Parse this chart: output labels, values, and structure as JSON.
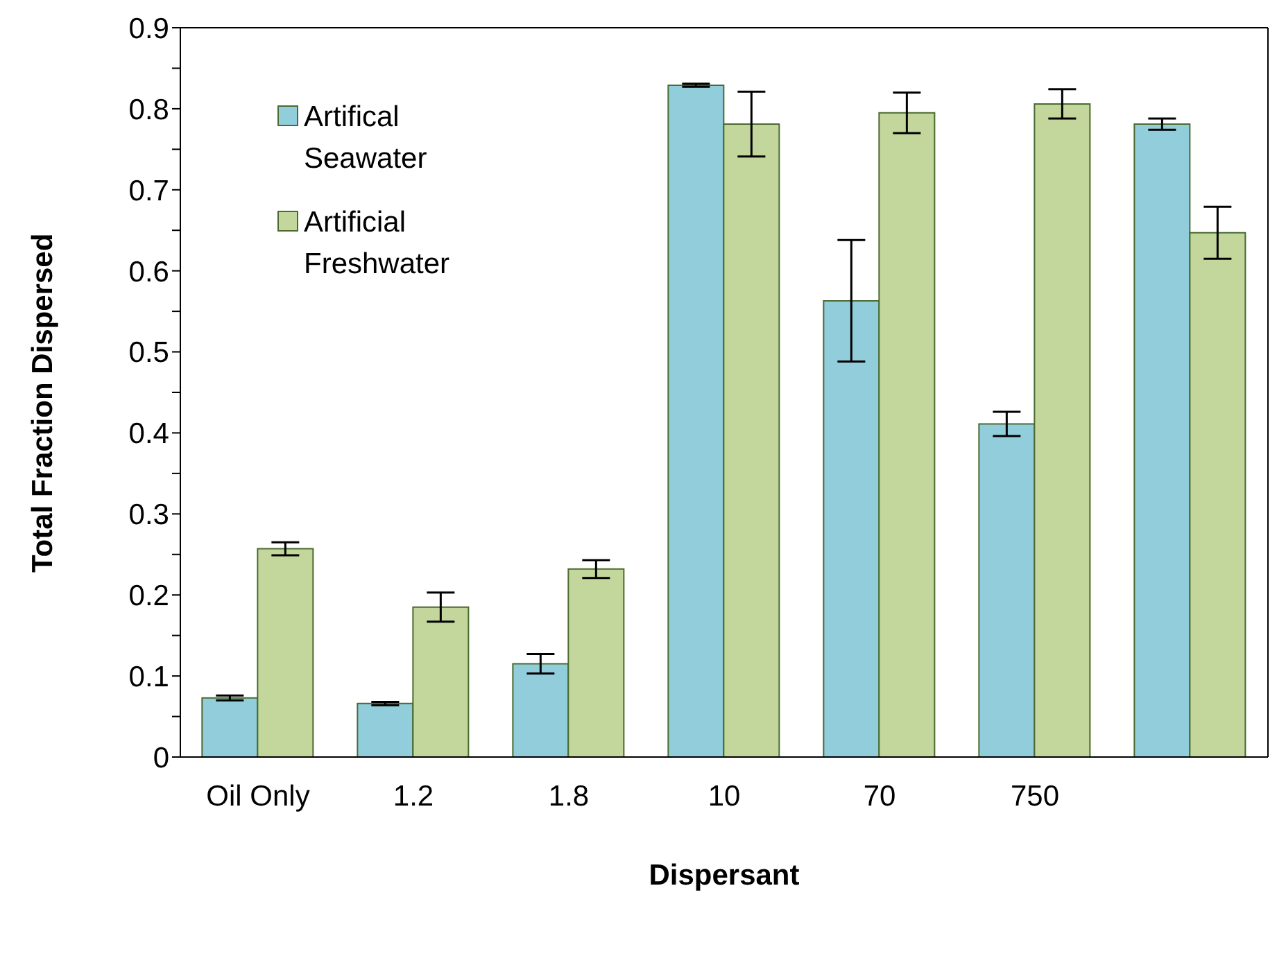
{
  "chart_data": {
    "type": "bar",
    "xlabel": "Dispersant",
    "ylabel": "Total Fraction Dispersed",
    "categories": [
      "Oil Only",
      "1.2",
      "1.8",
      "10",
      "70",
      "750",
      null
    ],
    "series": [
      {
        "name": "Artifical Seawater",
        "color": "#92cddc",
        "values": [
          0.073,
          0.066,
          0.115,
          0.829,
          0.563,
          0.411,
          0.781
        ],
        "errors": [
          0.003,
          0.002,
          0.012,
          0.002,
          0.075,
          0.015,
          0.007
        ]
      },
      {
        "name": "Artificial Freshwater",
        "color": "#c3d69b",
        "values": [
          0.257,
          0.185,
          0.232,
          0.781,
          0.795,
          0.806,
          0.647
        ],
        "errors": [
          0.008,
          0.018,
          0.011,
          0.04,
          0.025,
          0.018,
          0.032
        ]
      }
    ],
    "ylim": [
      0,
      0.9
    ],
    "yticks": [
      0,
      {
        "value": 0.05,
        "label": null
      },
      0.1,
      {
        "value": 0.15,
        "label": null
      },
      0.2,
      {
        "value": 0.25,
        "label": null
      },
      0.3,
      {
        "value": 0.35,
        "label": null
      },
      0.4,
      {
        "value": 0.45,
        "label": null
      },
      0.5,
      {
        "value": 0.55,
        "label": null
      },
      0.6,
      {
        "value": 0.65,
        "label": null
      },
      0.7,
      {
        "value": 0.75,
        "label": null
      },
      0.8,
      {
        "value": 0.85,
        "label": null
      },
      0.9
    ],
    "legend": "top left"
  }
}
